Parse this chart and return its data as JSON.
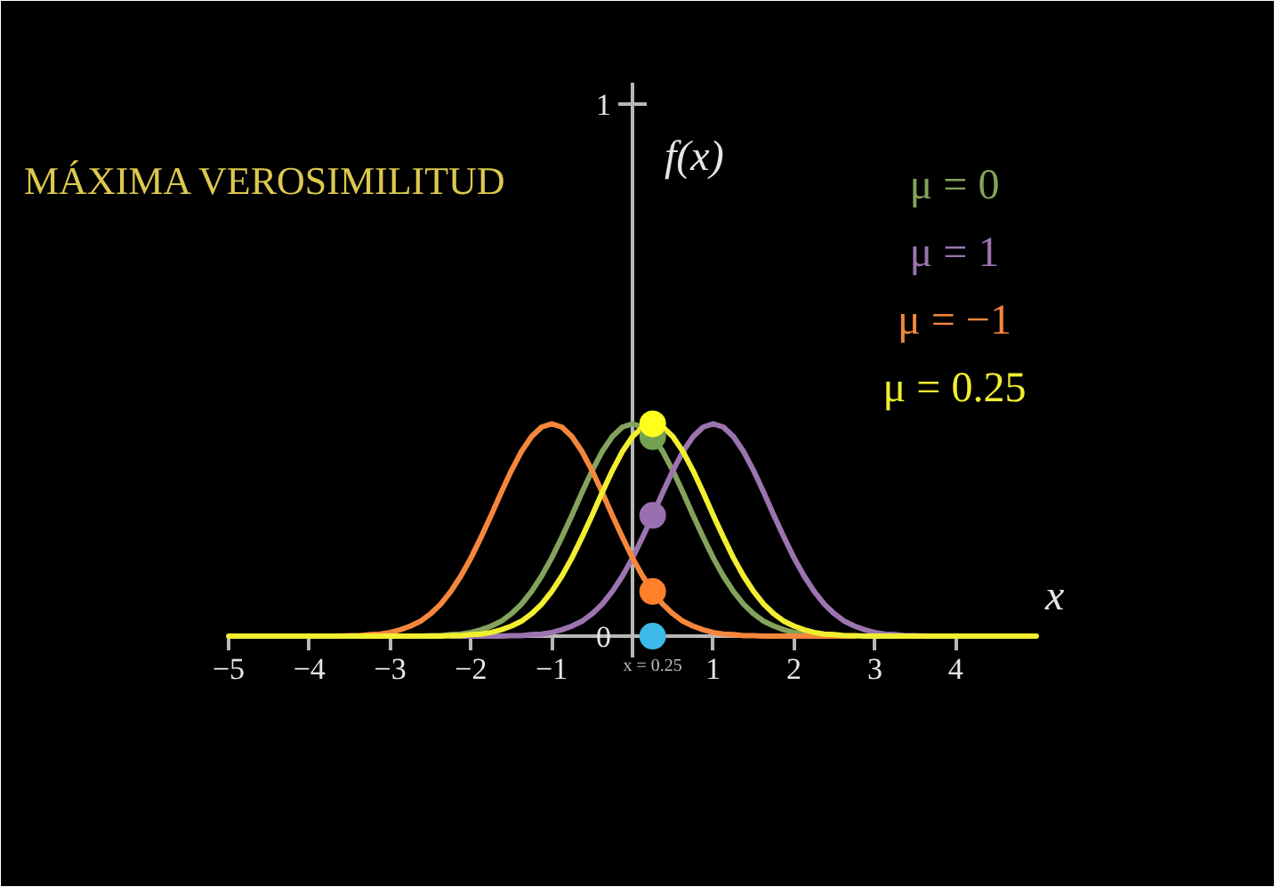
{
  "chart_data": {
    "type": "line",
    "title": "MÁXIMA VEROSIMILITUD",
    "xlabel": "x",
    "ylabel": "f(x)",
    "x": [
      -5,
      -4.875,
      -4.75,
      -4.625,
      -4.5,
      -4.375,
      -4.25,
      -4.125,
      -4,
      -3.875,
      -3.75,
      -3.625,
      -3.5,
      -3.375,
      -3.25,
      -3.125,
      -3,
      -2.875,
      -2.75,
      -2.625,
      -2.5,
      -2.375,
      -2.25,
      -2.125,
      -2,
      -1.875,
      -1.75,
      -1.625,
      -1.5,
      -1.375,
      -1.25,
      -1.125,
      -1,
      -0.875,
      -0.75,
      -0.625,
      -0.5,
      -0.375,
      -0.25,
      -0.125,
      0,
      0.125,
      0.25,
      0.375,
      0.5,
      0.625,
      0.75,
      0.875,
      1,
      1.125,
      1.25,
      1.375,
      1.5,
      1.625,
      1.75,
      1.875,
      2,
      2.125,
      2.25,
      2.375,
      2.5,
      2.625,
      2.75,
      2.875,
      3,
      3.125,
      3.25,
      3.375,
      3.5,
      3.625,
      3.75,
      3.875,
      4,
      4.125,
      4.25,
      4.375,
      4.5,
      4.625,
      4.75,
      4.875,
      5
    ],
    "series": [
      {
        "name": "μ = 0",
        "color": "#83a35c",
        "values": [
          null,
          null,
          null,
          null,
          null,
          null,
          null,
          null,
          null,
          null,
          null,
          null,
          null,
          null,
          null,
          null,
          null,
          0,
          0,
          0,
          0.001,
          0.001,
          0.003,
          0.004,
          0.007,
          0.012,
          0.019,
          0.028,
          0.042,
          0.06,
          0.084,
          0.113,
          0.147,
          0.186,
          0.227,
          0.27,
          0.311,
          0.347,
          0.375,
          0.393,
          0.399,
          0.393,
          0.375,
          0.347,
          0.311,
          0.27,
          0.227,
          0.186,
          0.147,
          0.113,
          0.084,
          0.06,
          0.042,
          0.028,
          0.019,
          0.012,
          0.007,
          0.004,
          0.003,
          0.001,
          null,
          null,
          null,
          null,
          null,
          null,
          null,
          null,
          null,
          null,
          null,
          null,
          null,
          null,
          null,
          null,
          null,
          null,
          null,
          null,
          null
        ]
      },
      {
        "name": "μ = 1",
        "color": "#9b74b0",
        "values": [
          null,
          null,
          null,
          null,
          null,
          null,
          null,
          null,
          null,
          null,
          null,
          null,
          null,
          null,
          null,
          null,
          null,
          null,
          null,
          null,
          null,
          null,
          0,
          0,
          0,
          0,
          0,
          0,
          0.001,
          0.001,
          0.003,
          0.004,
          0.007,
          0.012,
          0.019,
          0.028,
          0.042,
          0.06,
          0.084,
          0.113,
          0.147,
          0.186,
          0.227,
          0.27,
          0.311,
          0.347,
          0.375,
          0.393,
          0.399,
          0.393,
          0.375,
          0.347,
          0.311,
          0.27,
          0.227,
          0.186,
          0.147,
          0.113,
          0.084,
          0.06,
          0.042,
          0.028,
          0.019,
          0.012,
          0.007,
          0.004,
          0.003,
          0.001,
          0.001,
          0,
          0,
          0,
          null,
          null,
          null,
          null,
          null,
          null,
          null,
          null,
          null
        ]
      },
      {
        "name": "μ = −1",
        "color": "#f5873c",
        "values": [
          null,
          null,
          null,
          null,
          null,
          null,
          null,
          null,
          null,
          0,
          0,
          0,
          0.001,
          0.001,
          0.003,
          0.004,
          0.007,
          0.012,
          0.019,
          0.028,
          0.042,
          0.06,
          0.084,
          0.113,
          0.147,
          0.186,
          0.227,
          0.27,
          0.311,
          0.347,
          0.375,
          0.393,
          0.399,
          0.393,
          0.375,
          0.347,
          0.311,
          0.27,
          0.227,
          0.186,
          0.147,
          0.113,
          0.084,
          0.06,
          0.042,
          0.028,
          0.019,
          0.012,
          0.007,
          0.004,
          0.003,
          0.001,
          0.001,
          0,
          0,
          0,
          0,
          0,
          0,
          0,
          0,
          0,
          0,
          null,
          null,
          null,
          null,
          null,
          null,
          null,
          null,
          null,
          null,
          null,
          null,
          null,
          null,
          null,
          null,
          null,
          null
        ]
      },
      {
        "name": "μ = 0.25",
        "color": "#f2ee30",
        "values": [
          0,
          0,
          0,
          0,
          0,
          0,
          0,
          0,
          0,
          0,
          0,
          0,
          0,
          0,
          0,
          0,
          0,
          0,
          0,
          0,
          0,
          0,
          0.001,
          0.001,
          0.003,
          0.004,
          0.007,
          0.012,
          0.019,
          0.028,
          0.042,
          0.06,
          0.084,
          0.113,
          0.147,
          0.186,
          0.227,
          0.27,
          0.311,
          0.347,
          0.375,
          0.393,
          0.399,
          0.393,
          0.375,
          0.347,
          0.311,
          0.27,
          0.227,
          0.186,
          0.147,
          0.113,
          0.084,
          0.06,
          0.042,
          0.028,
          0.019,
          0.012,
          0.007,
          0.004,
          0.003,
          0.001,
          0.001,
          0,
          0,
          0,
          0,
          0,
          0,
          0,
          0,
          0,
          0,
          0,
          0,
          0,
          0,
          0,
          0,
          0,
          0
        ]
      },
      {
        "type": "scatter",
        "marker": "circle",
        "color": "#74a052",
        "values": [
          null,
          null,
          null,
          null,
          null,
          null,
          null,
          null,
          null,
          null,
          null,
          null,
          null,
          null,
          null,
          null,
          null,
          null,
          null,
          null,
          null,
          null,
          null,
          null,
          null,
          null,
          null,
          null,
          null,
          null,
          null,
          null,
          null,
          null,
          null,
          null,
          null,
          null,
          null,
          null,
          null,
          null,
          0.375,
          null,
          null,
          null,
          null,
          null,
          null,
          null,
          null,
          null,
          null,
          null,
          null,
          null,
          null,
          null,
          null,
          null,
          null,
          null,
          null,
          null,
          null,
          null,
          null,
          null,
          null,
          null,
          null,
          null,
          null,
          null,
          null,
          null,
          null,
          null,
          null,
          null,
          null
        ]
      },
      {
        "type": "scatter",
        "marker": "circle",
        "color": "#9a6fb0",
        "values": [
          null,
          null,
          null,
          null,
          null,
          null,
          null,
          null,
          null,
          null,
          null,
          null,
          null,
          null,
          null,
          null,
          null,
          null,
          null,
          null,
          null,
          null,
          null,
          null,
          null,
          null,
          null,
          null,
          null,
          null,
          null,
          null,
          null,
          null,
          null,
          null,
          null,
          null,
          null,
          null,
          null,
          null,
          0.227,
          null,
          null,
          null,
          null,
          null,
          null,
          null,
          null,
          null,
          null,
          null,
          null,
          null,
          null,
          null,
          null,
          null,
          null,
          null,
          null,
          null,
          null,
          null,
          null,
          null,
          null,
          null,
          null,
          null,
          null,
          null,
          null,
          null,
          null,
          null,
          null,
          null,
          null
        ]
      },
      {
        "type": "scatter",
        "marker": "circle",
        "color": "#ff7f2a",
        "values": [
          null,
          null,
          null,
          null,
          null,
          null,
          null,
          null,
          null,
          null,
          null,
          null,
          null,
          null,
          null,
          null,
          null,
          null,
          null,
          null,
          null,
          null,
          null,
          null,
          null,
          null,
          null,
          null,
          null,
          null,
          null,
          null,
          null,
          null,
          null,
          null,
          null,
          null,
          null,
          null,
          null,
          null,
          0.084,
          null,
          null,
          null,
          null,
          null,
          null,
          null,
          null,
          null,
          null,
          null,
          null,
          null,
          null,
          null,
          null,
          null,
          null,
          null,
          null,
          null,
          null,
          null,
          null,
          null,
          null,
          null,
          null,
          null,
          null,
          null,
          null,
          null,
          null,
          null,
          null,
          null,
          null
        ]
      },
      {
        "type": "scatter",
        "marker": "circle",
        "color": "#3cb9e8",
        "values": [
          null,
          null,
          null,
          null,
          null,
          null,
          null,
          null,
          null,
          null,
          null,
          null,
          null,
          null,
          null,
          null,
          null,
          null,
          null,
          null,
          null,
          null,
          null,
          null,
          null,
          null,
          null,
          null,
          null,
          null,
          null,
          null,
          null,
          null,
          null,
          null,
          null,
          null,
          null,
          null,
          null,
          null,
          0,
          null,
          null,
          null,
          null,
          null,
          null,
          null,
          null,
          null,
          null,
          null,
          null,
          null,
          null,
          null,
          null,
          null,
          null,
          null,
          null,
          null,
          null,
          null,
          null,
          null,
          null,
          null,
          null,
          null,
          null,
          null,
          null,
          null,
          null,
          null,
          null,
          null,
          null
        ]
      },
      {
        "type": "scatter",
        "marker": "circle",
        "color": "#ffff1e",
        "values": [
          null,
          null,
          null,
          null,
          null,
          null,
          null,
          null,
          null,
          null,
          null,
          null,
          null,
          null,
          null,
          null,
          null,
          null,
          null,
          null,
          null,
          null,
          null,
          null,
          null,
          null,
          null,
          null,
          null,
          null,
          null,
          null,
          null,
          null,
          null,
          null,
          null,
          null,
          null,
          null,
          null,
          null,
          0.399,
          null,
          null,
          null,
          null,
          null,
          null,
          null,
          null,
          null,
          null,
          null,
          null,
          null,
          null,
          null,
          null,
          null,
          null,
          null,
          null,
          null,
          null,
          null,
          null,
          null,
          null,
          null,
          null,
          null,
          null,
          null,
          null,
          null,
          null,
          null,
          null,
          null,
          null
        ]
      }
    ],
    "xlim": [
      -5,
      5
    ],
    "ylim": [
      -0.04,
      1.04
    ],
    "xticks": [
      {
        "value": -5,
        "label": "−5"
      },
      {
        "value": -4,
        "label": "−4"
      },
      {
        "value": -3,
        "label": "−3"
      },
      {
        "value": -2,
        "label": "−2"
      },
      {
        "value": -1,
        "label": "−1"
      },
      1,
      2,
      3,
      4
    ],
    "yticks": [
      0,
      1
    ],
    "legend": "top right",
    "annotations": [
      {
        "text": "x = 0.25",
        "x": 0.25,
        "y": 0
      }
    ]
  }
}
